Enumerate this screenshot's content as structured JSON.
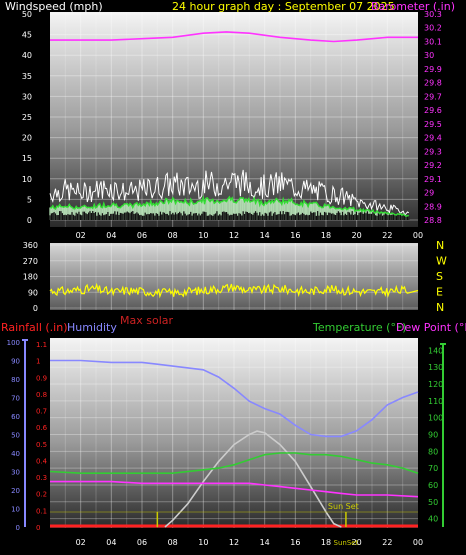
{
  "colors": {
    "background": "#000000",
    "wind_label": "#ffffff",
    "title": "#ffff00",
    "barometer": "#ff33ff",
    "wind_gust": "#ffffff",
    "wind_avg": "#33dd33",
    "wind_light": "#ccffcc",
    "direction": "#ffff00",
    "rainfall": "#ff2222",
    "humidity": "#8888ff",
    "max_solar": "#cc2222",
    "solar": "#cccccc",
    "temperature": "#33cc33",
    "dew_point": "#ff33ff",
    "sun_markers": "#cccc00",
    "axis_text": "#ffffff"
  },
  "chart_data": [
    {
      "type": "line",
      "id": "wind_barometer",
      "title": "24 hour graph day : September 07 2025",
      "left_axis_label": "Windspeed (mph)",
      "right_axis_label": "Barometer (.in)",
      "x_ticks": [
        "02",
        "04",
        "06",
        "08",
        "10",
        "12",
        "14",
        "16",
        "18",
        "20",
        "22",
        "00"
      ],
      "y_left_ticks": [
        "0",
        "5",
        "10",
        "15",
        "20",
        "25",
        "30",
        "35",
        "40",
        "45",
        "50"
      ],
      "y_left_range": [
        0,
        50
      ],
      "y_right_ticks": [
        "28.8",
        "28.9",
        "29",
        "29.1",
        "29.2",
        "29.3",
        "29.4",
        "29.5",
        "29.6",
        "29.7",
        "29.8",
        "29.9",
        "30",
        "30.1",
        "30.2",
        "30.3"
      ],
      "y_right_range": [
        28.8,
        30.3
      ],
      "grid": true,
      "series": [
        {
          "name": "Barometer",
          "axis": "right",
          "hours": [
            0,
            2,
            4,
            6,
            8,
            10,
            11.5,
            13,
            15,
            17,
            18.5,
            20,
            22,
            24
          ],
          "values": [
            30.11,
            30.11,
            30.11,
            30.12,
            30.13,
            30.16,
            30.17,
            30.16,
            30.13,
            30.11,
            30.1,
            30.11,
            30.13,
            30.13
          ]
        },
        {
          "name": "Wind gust",
          "axis": "left",
          "hours": [
            0,
            1,
            2,
            3,
            4,
            5,
            6,
            7,
            8,
            9,
            10,
            11,
            12,
            13,
            14,
            15,
            16,
            17,
            18,
            19,
            20,
            21,
            22,
            23,
            24
          ],
          "values": [
            9,
            10,
            9,
            10,
            11,
            9,
            10,
            11,
            12,
            11,
            12,
            12,
            13,
            12,
            11,
            12,
            11,
            10,
            9,
            8,
            6,
            5,
            4,
            3,
            1
          ]
        },
        {
          "name": "Wind average",
          "axis": "left",
          "hours": [
            0,
            1,
            2,
            3,
            4,
            5,
            6,
            7,
            8,
            9,
            10,
            11,
            12,
            13,
            14,
            15,
            16,
            17,
            18,
            19,
            20,
            21,
            22,
            23,
            24
          ],
          "values": [
            3.5,
            4,
            3.5,
            4,
            4.5,
            4,
            4.5,
            5,
            5.5,
            5,
            5.5,
            5.5,
            6,
            5.5,
            5,
            5.5,
            5,
            4.5,
            4,
            3.5,
            3,
            2.5,
            2,
            1.5,
            0.5
          ]
        }
      ]
    },
    {
      "type": "line",
      "id": "wind_direction",
      "y_ticks": [
        "360",
        "270",
        "180",
        "90",
        "0"
      ],
      "y_range": [
        0,
        360
      ],
      "compass_labels": [
        "N",
        "W",
        "S",
        "E",
        "N"
      ],
      "grid": true,
      "series": [
        {
          "name": "Wind direction",
          "hours": [
            0,
            1,
            2,
            3,
            4,
            5,
            6,
            7,
            8,
            9,
            10,
            11,
            12,
            13,
            14,
            15,
            16,
            17,
            18,
            19,
            20,
            21,
            22,
            23,
            23.3,
            24
          ],
          "values": [
            100,
            95,
            105,
            110,
            90,
            100,
            95,
            90,
            85,
            95,
            100,
            110,
            120,
            100,
            105,
            110,
            100,
            95,
            110,
            100,
            95,
            90,
            95,
            100,
            100,
            100
          ]
        }
      ]
    },
    {
      "type": "line",
      "id": "temperature_humidity",
      "top_labels": {
        "rainfall": "Rainfall (.in)",
        "humidity": "Humidity",
        "max_solar": "Max solar",
        "temperature": "Temperature (°F)",
        "dew_point": "Dew Point (°F)"
      },
      "x_ticks": [
        "02",
        "04",
        "06",
        "08",
        "10",
        "12",
        "14",
        "16",
        "18",
        "20",
        "22",
        "00"
      ],
      "sunset_label": "Sun Set",
      "sunset_tick_label": "SunSet",
      "y_humidity_ticks": [
        "0",
        "10",
        "20",
        "30",
        "40",
        "50",
        "60",
        "70",
        "80",
        "90",
        "100"
      ],
      "y_humidity_range": [
        0,
        100
      ],
      "y_rain_ticks": [
        "0",
        "0.1",
        "0.2",
        "0.3",
        "0.4",
        "0.5",
        "0.6",
        "0.7",
        "0.8",
        "0.9",
        "1",
        "1.1"
      ],
      "y_rain_range": [
        0,
        1.1
      ],
      "y_temp_ticks": [
        "40",
        "50",
        "60",
        "70",
        "80",
        "90",
        "100",
        "110",
        "120",
        "130",
        "140"
      ],
      "y_temp_range": [
        35,
        145
      ],
      "grid": true,
      "sunrise_hour": 7.0,
      "sunset_hour": 19.3,
      "series": [
        {
          "name": "Humidity",
          "axis": "humidity",
          "hours": [
            0,
            2,
            4,
            6,
            7,
            8,
            9,
            10,
            11,
            12,
            13,
            14,
            15,
            16,
            17,
            18,
            19,
            20,
            21,
            22,
            23,
            24
          ],
          "values": [
            90,
            90,
            89,
            89,
            88,
            87,
            86,
            85,
            81,
            75,
            68,
            64,
            61,
            55,
            50,
            49,
            49,
            52,
            58,
            66,
            70,
            73
          ]
        },
        {
          "name": "Temperature",
          "axis": "temp",
          "hours": [
            0,
            2,
            4,
            6,
            8,
            10,
            11,
            12,
            13,
            14,
            15,
            16,
            17,
            18,
            19,
            20,
            21,
            22,
            23,
            24
          ],
          "values": [
            68,
            67,
            67,
            67,
            67,
            69,
            70,
            72,
            75,
            78,
            79,
            79,
            78,
            78,
            77,
            75,
            73,
            72,
            70,
            67
          ]
        },
        {
          "name": "Dew Point",
          "axis": "temp",
          "hours": [
            0,
            2,
            4,
            6,
            8,
            10,
            12,
            13,
            14,
            15,
            16,
            17,
            18,
            19,
            20,
            22,
            24
          ],
          "values": [
            62,
            62,
            62,
            61,
            61,
            61,
            61,
            61,
            60,
            59,
            58,
            57,
            56,
            55,
            54,
            54,
            53
          ]
        },
        {
          "name": "Solar",
          "axis": "temp",
          "hours": [
            7.5,
            8,
            9,
            10,
            11,
            12,
            13,
            13.5,
            14,
            15,
            16,
            17,
            18,
            18.5,
            19
          ],
          "values": [
            35,
            39,
            49,
            62,
            74,
            84,
            90,
            92,
            91,
            84,
            74,
            59,
            44,
            37,
            35
          ]
        },
        {
          "name": "Rainfall",
          "axis": "rain",
          "hours": [
            0,
            24
          ],
          "values": [
            0,
            0
          ]
        }
      ]
    }
  ]
}
